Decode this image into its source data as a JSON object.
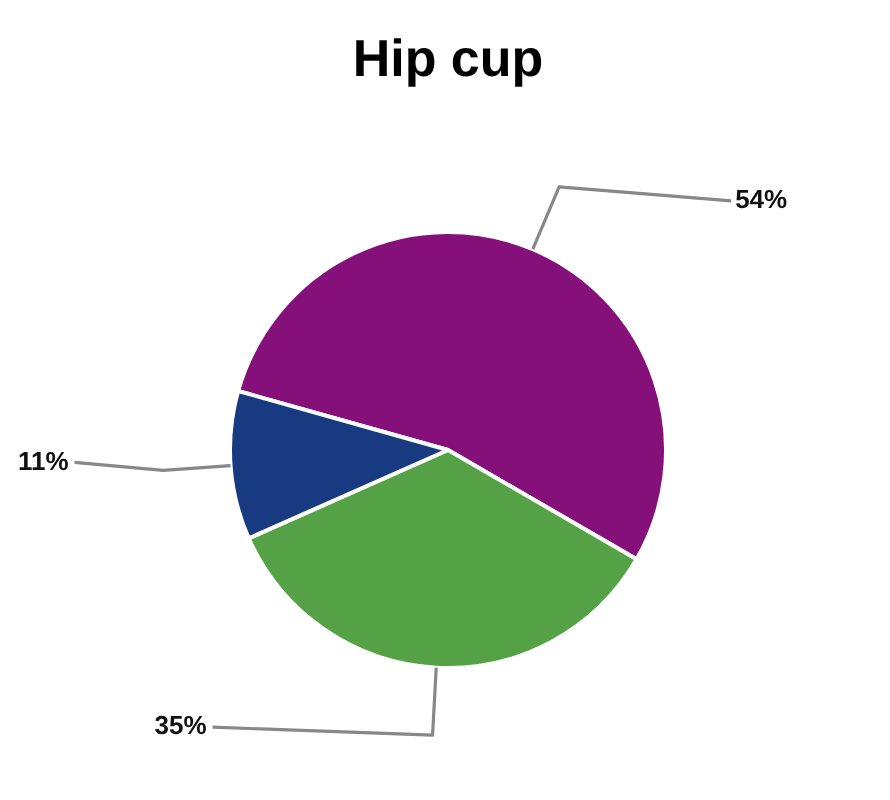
{
  "chart_data": {
    "type": "pie",
    "title": "Hip cup",
    "categories": [
      null,
      null,
      null
    ],
    "values": [
      54,
      35,
      11
    ],
    "colors": [
      "#85107a",
      "#55a146",
      "#173a80"
    ],
    "value_labels": [
      "54%",
      "35%",
      "11%"
    ]
  }
}
